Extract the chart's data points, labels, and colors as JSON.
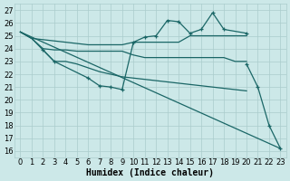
{
  "xlabel": "Humidex (Indice chaleur)",
  "bg_color": "#cce8e8",
  "grid_color": "#aacccc",
  "line_color": "#1a6666",
  "xlim": [
    -0.5,
    23.5
  ],
  "ylim": [
    15.5,
    27.5
  ],
  "xticks": [
    0,
    1,
    2,
    3,
    4,
    5,
    6,
    7,
    8,
    9,
    10,
    11,
    12,
    13,
    14,
    15,
    16,
    17,
    18,
    19,
    20,
    21,
    22,
    23
  ],
  "yticks": [
    16,
    17,
    18,
    19,
    20,
    21,
    22,
    23,
    24,
    25,
    26,
    27
  ],
  "line_width": 0.9,
  "marker_size": 3.5,
  "font_size_label": 7,
  "font_size_tick": 6,
  "series": [
    {
      "x": [
        0,
        1,
        2,
        3,
        4,
        5,
        6,
        7,
        8,
        9,
        10,
        11,
        12,
        13,
        14,
        15,
        16,
        17,
        18,
        19,
        20
      ],
      "y": [
        25.3,
        24.8,
        24.7,
        24.6,
        24.5,
        24.4,
        24.3,
        24.3,
        24.3,
        24.3,
        24.5,
        24.5,
        24.5,
        24.5,
        24.5,
        25.0,
        25.0,
        25.0,
        25.0,
        25.0,
        25.0
      ],
      "marker": false
    },
    {
      "x": [
        0,
        1,
        2,
        3,
        4,
        5,
        6,
        7,
        8,
        9,
        10,
        11,
        12,
        13,
        14,
        15,
        16,
        17,
        18,
        19,
        20
      ],
      "y": [
        25.3,
        24.8,
        24.0,
        23.9,
        23.9,
        23.8,
        23.8,
        23.8,
        23.8,
        23.8,
        23.5,
        23.3,
        23.3,
        23.3,
        23.3,
        23.3,
        23.3,
        23.3,
        23.3,
        23.0,
        23.0
      ],
      "marker": false
    },
    {
      "x": [
        0,
        1,
        2,
        3,
        4,
        5,
        6,
        7,
        8,
        9,
        10,
        11,
        12,
        13,
        14,
        15,
        16,
        17,
        18,
        19,
        20
      ],
      "y": [
        25.3,
        24.8,
        23.9,
        23.0,
        23.0,
        22.8,
        22.5,
        22.2,
        22.0,
        21.8,
        21.7,
        21.6,
        21.5,
        21.4,
        21.3,
        21.2,
        21.1,
        21.0,
        20.9,
        20.8,
        20.7
      ],
      "marker": false
    },
    {
      "x": [
        0,
        23
      ],
      "y": [
        25.3,
        16.2
      ],
      "marker": false
    },
    {
      "x": [
        2,
        3,
        6,
        7,
        8,
        9,
        10,
        11,
        12,
        13,
        14,
        15,
        16,
        17,
        18,
        20
      ],
      "y": [
        23.9,
        23.0,
        21.7,
        21.1,
        21.0,
        20.8,
        24.5,
        24.9,
        25.0,
        26.2,
        26.1,
        25.2,
        25.5,
        26.8,
        25.5,
        25.2
      ],
      "marker": true
    },
    {
      "x": [
        20,
        21,
        22,
        23
      ],
      "y": [
        22.8,
        21.0,
        18.0,
        16.2
      ],
      "marker": true
    }
  ]
}
